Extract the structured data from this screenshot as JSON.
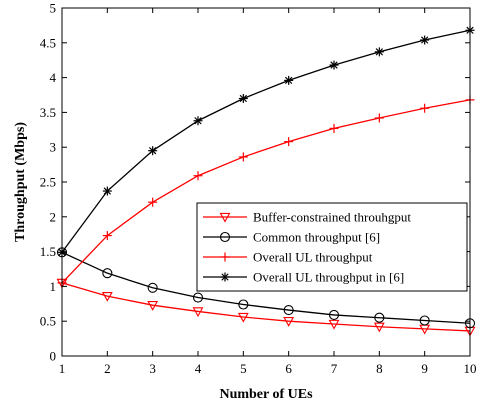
{
  "chart_data": {
    "type": "line",
    "title": "",
    "xlabel": "Number of UEs",
    "ylabel": "Throughput (Mbps)",
    "x": [
      1,
      2,
      3,
      4,
      5,
      6,
      7,
      8,
      9,
      10
    ],
    "xlim": [
      1,
      10
    ],
    "ylim": [
      0,
      5
    ],
    "xticks": [
      "1",
      "2",
      "3",
      "4",
      "5",
      "6",
      "7",
      "8",
      "9",
      "10"
    ],
    "yticks": [
      "0",
      "0.5",
      "1",
      "1.5",
      "2",
      "2.5",
      "3",
      "3.5",
      "4",
      "4.5",
      "5"
    ],
    "grid": false,
    "legend_position": "center-right",
    "series": [
      {
        "name": "Buffer-constrained throuhgput",
        "color": "#ff0000",
        "marker": "triangle-down",
        "values": [
          1.05,
          0.86,
          0.73,
          0.64,
          0.56,
          0.5,
          0.46,
          0.42,
          0.39,
          0.36
        ]
      },
      {
        "name": "Common throughput [6]",
        "color": "#000000",
        "marker": "circle",
        "values": [
          1.49,
          1.19,
          0.98,
          0.84,
          0.74,
          0.66,
          0.59,
          0.55,
          0.51,
          0.47
        ]
      },
      {
        "name": "Overall UL throughput",
        "color": "#ff0000",
        "marker": "plus",
        "values": [
          1.05,
          1.73,
          2.21,
          2.59,
          2.86,
          3.08,
          3.27,
          3.42,
          3.56,
          3.68
        ]
      },
      {
        "name": "Overall UL throughput in [6]",
        "color": "#000000",
        "marker": "asterisk",
        "values": [
          1.49,
          2.37,
          2.95,
          3.38,
          3.7,
          3.96,
          4.18,
          4.37,
          4.54,
          4.68
        ]
      }
    ]
  }
}
